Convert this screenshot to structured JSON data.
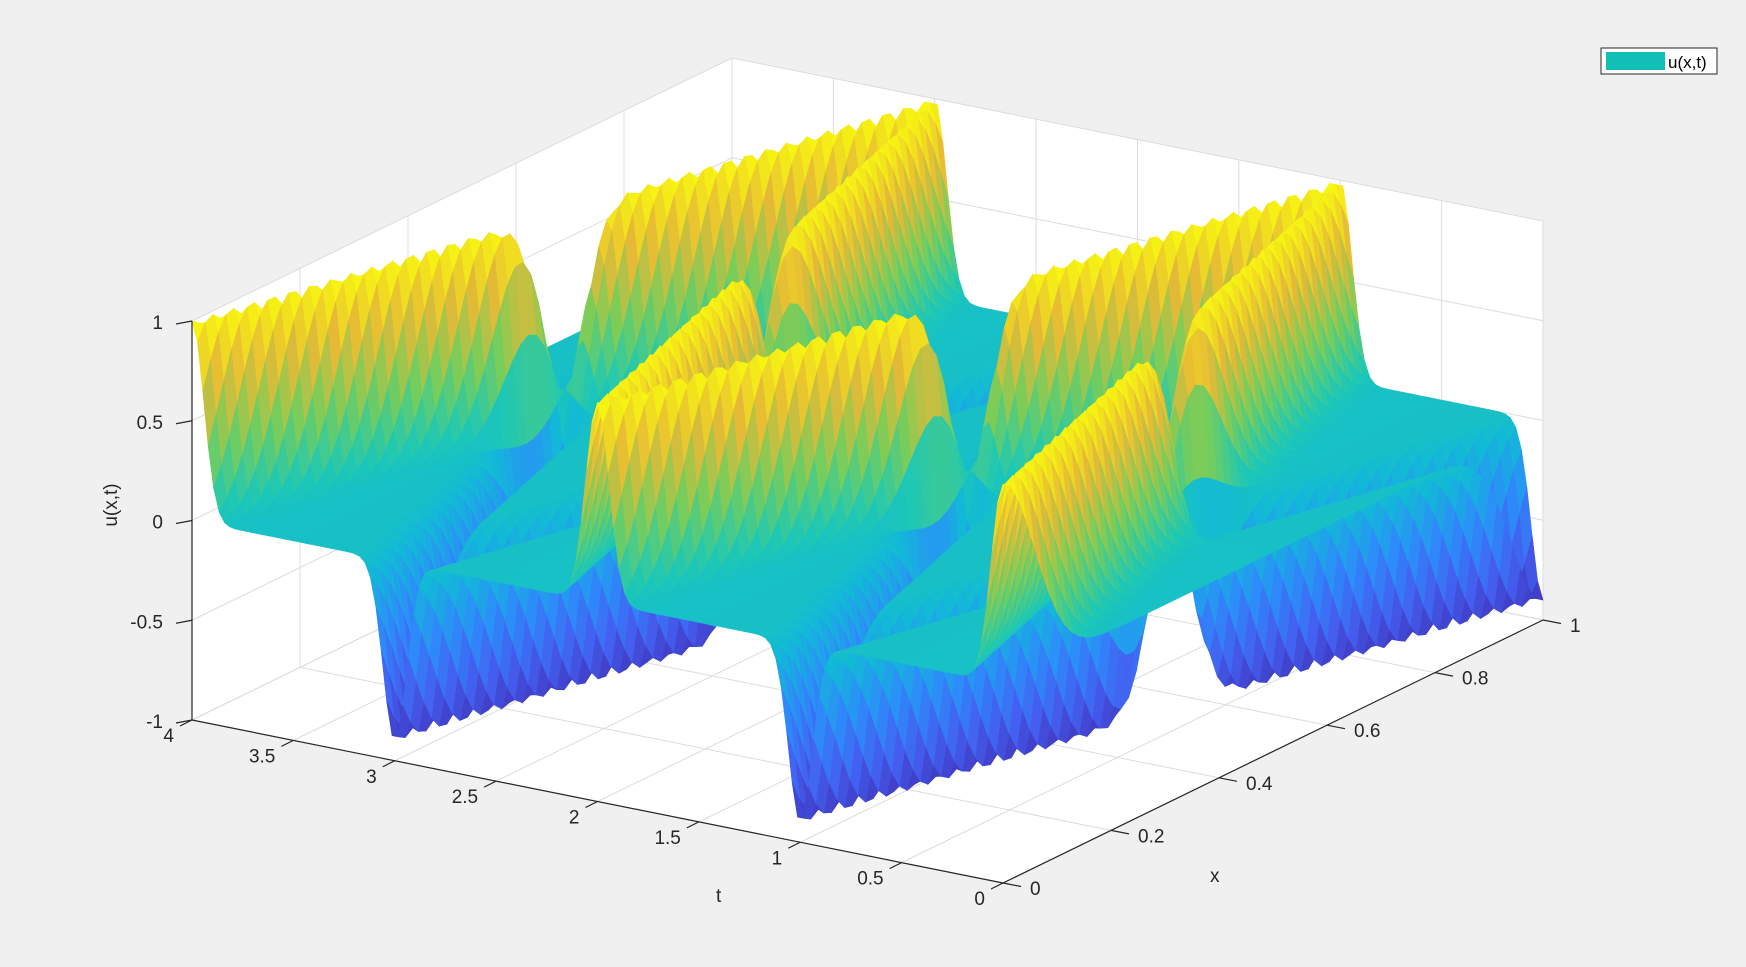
{
  "figure": {
    "background": "#f0f0f0"
  },
  "chart_data": {
    "type": "surface",
    "title": "",
    "xlabel": "x",
    "ylabel": "t",
    "zlabel": "u(x,t)",
    "x_range": [
      0,
      1
    ],
    "t_range": [
      0,
      4
    ],
    "z_range": [
      -1,
      1
    ],
    "x_ticks": [
      "0",
      "0.2",
      "0.4",
      "0.6",
      "0.8",
      "1"
    ],
    "t_ticks": [
      "0",
      "0.5",
      "1",
      "1.5",
      "2",
      "2.5",
      "3",
      "3.5",
      "4"
    ],
    "z_ticks": [
      "-1",
      "-0.5",
      "0",
      "0.5",
      "1"
    ],
    "grid": true,
    "colormap": "parula",
    "legend": {
      "position": "top-right",
      "entries": [
        "u(x,t)"
      ],
      "swatch_color": "#12bfb7"
    },
    "model": {
      "description_of_surface": "travelling pulses u(x,t) reflecting between x=0 and x=1",
      "pulse_width": 0.058,
      "wave_speed": 1,
      "peak_amplitude": 1.0,
      "trough_amplitude": -0.9
    }
  }
}
